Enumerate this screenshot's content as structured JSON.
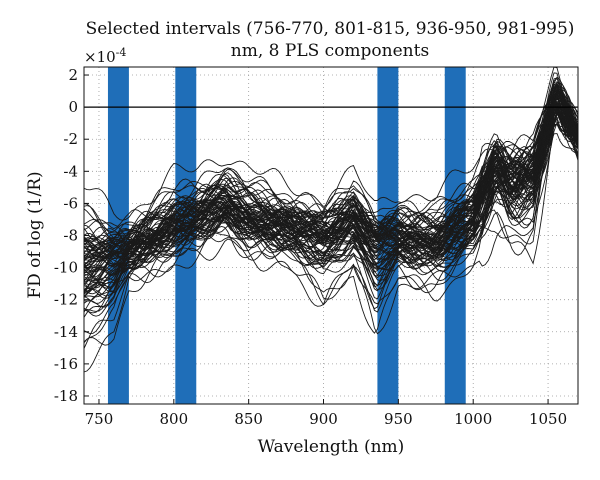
{
  "chart_data": {
    "type": "line",
    "title_line1": "Selected intervals (756-770, 801-815, 936-950, 981-995)",
    "title_line2": "nm, 8 PLS components",
    "xlabel": "Wavelength (nm)",
    "ylabel": "FD of log (1/R)",
    "y_exponent_label": "×10",
    "y_exponent_power": "-4",
    "xlim": [
      740,
      1070
    ],
    "ylim": [
      -18.5,
      2.5
    ],
    "x_ticks": [
      750,
      800,
      850,
      900,
      950,
      1000,
      1050
    ],
    "y_ticks": [
      2,
      0,
      -2,
      -4,
      -6,
      -8,
      -10,
      -12,
      -14,
      -16,
      -18
    ],
    "x_tick_labels": [
      "750",
      "800",
      "850",
      "900",
      "950",
      "1000",
      "1050"
    ],
    "y_tick_labels": [
      "2",
      "0",
      "-2",
      "-4",
      "-6",
      "-8",
      "-10",
      "-12",
      "-14",
      "-16",
      "-18"
    ],
    "grid": "dotted",
    "zero_line": 0,
    "intervals": [
      [
        756,
        770
      ],
      [
        801,
        815
      ],
      [
        936,
        950
      ],
      [
        981,
        995
      ]
    ],
    "interval_color": "#1f6eb8",
    "line_color": "#1a1a1a",
    "series_count": 90,
    "series_summary": {
      "x": [
        740,
        760,
        770,
        800,
        815,
        835,
        850,
        875,
        900,
        920,
        935,
        950,
        975,
        1000,
        1015,
        1025,
        1040,
        1050,
        1055,
        1070
      ],
      "mean": [
        -10,
        -9.5,
        -9,
        -7.5,
        -7,
        -6.2,
        -7,
        -7.6,
        -8,
        -7,
        -8.5,
        -8.3,
        -8.5,
        -7,
        -3.5,
        -4.5,
        -4,
        -1,
        0.5,
        -2
      ],
      "min": [
        -18,
        -16,
        -12,
        -10.5,
        -10,
        -9,
        -10,
        -10.5,
        -14,
        -11.5,
        -16.5,
        -12,
        -12.5,
        -11,
        -9,
        -10,
        -10.5,
        -4,
        -1,
        -2.8
      ],
      "max": [
        -4,
        -6,
        -6,
        -3.5,
        -3.5,
        -2,
        -3,
        -4.5,
        -5,
        -3.5,
        -6,
        -4.5,
        -5,
        -3,
        -1.5,
        -2,
        -2,
        0.5,
        2,
        -1
      ]
    }
  }
}
